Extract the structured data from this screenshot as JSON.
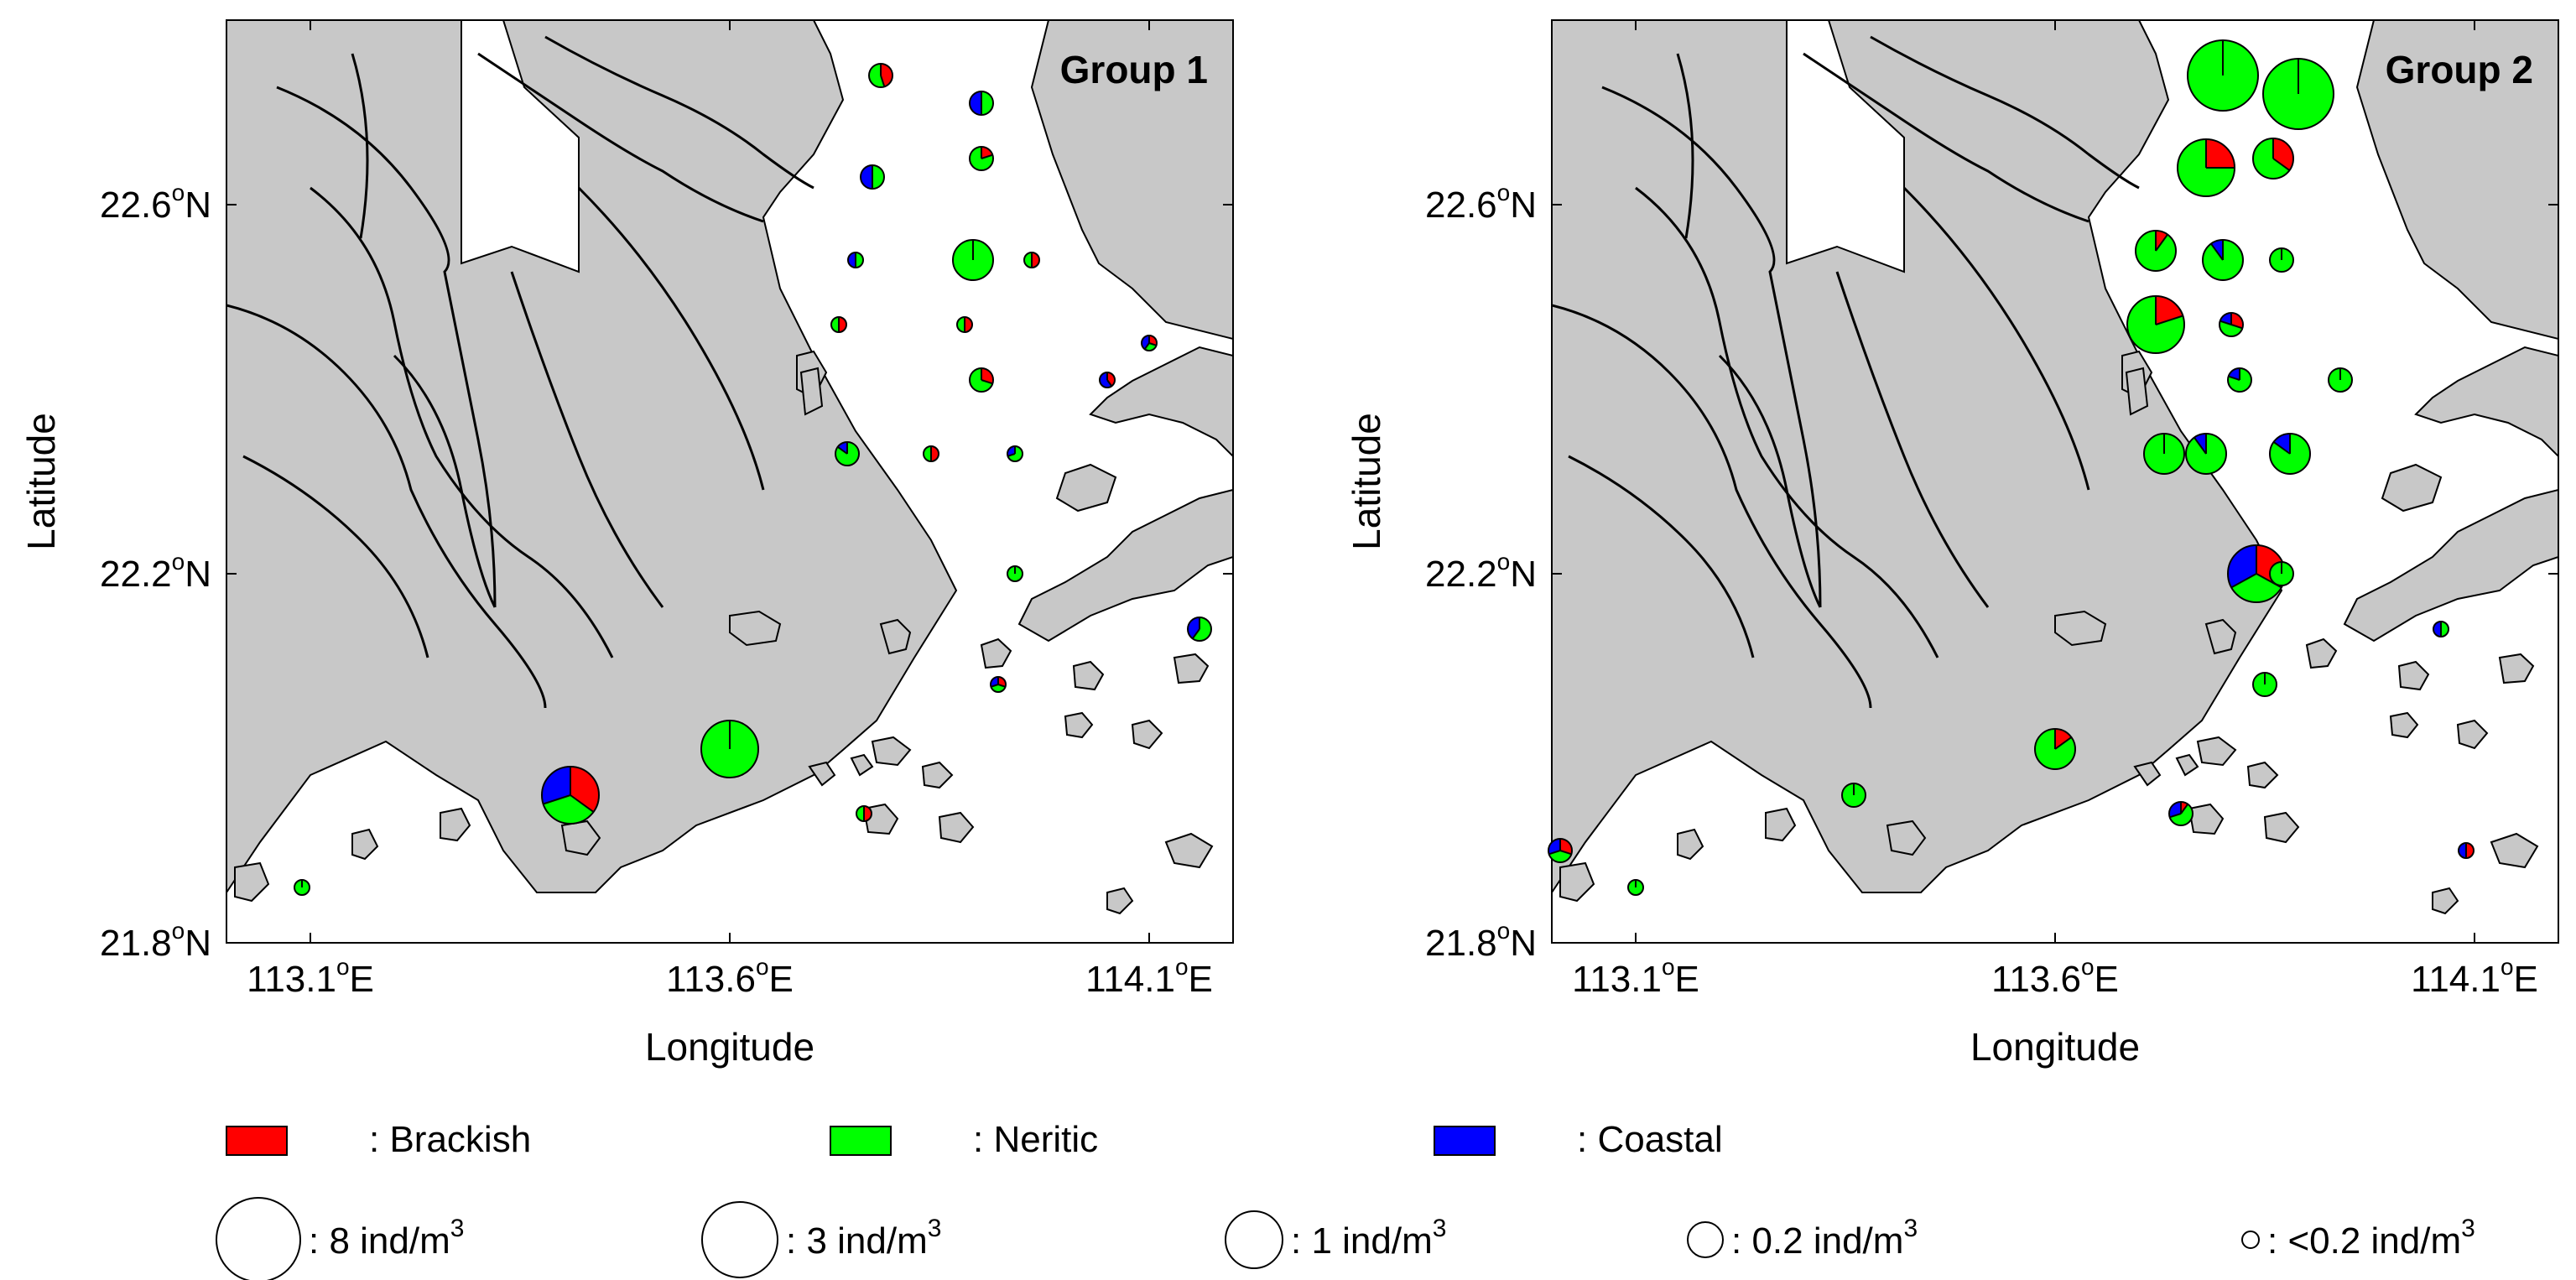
{
  "colors": {
    "land": "#c8c8c8",
    "water": "#ffffff",
    "brackish": "#ff0000",
    "neritic": "#00ff00",
    "coastal": "#0000ff",
    "outline": "#000000"
  },
  "axes": {
    "xlabel": "Longitude",
    "ylabel": "Latitude",
    "lon_range": [
      113.0,
      114.2
    ],
    "lat_range": [
      21.8,
      22.8
    ],
    "x_ticks": [
      {
        "value": 113.1,
        "num": "113.1",
        "deg": "o",
        "hem": "E"
      },
      {
        "value": 113.6,
        "num": "113.6",
        "deg": "o",
        "hem": "E"
      },
      {
        "value": 114.1,
        "num": "114.1",
        "deg": "o",
        "hem": "E"
      }
    ],
    "y_ticks": [
      {
        "value": 22.6,
        "num": "22.6",
        "deg": "o",
        "hem": "N"
      },
      {
        "value": 22.2,
        "num": "22.2",
        "deg": "o",
        "hem": "N"
      },
      {
        "value": 21.8,
        "num": "21.8",
        "deg": "o",
        "hem": "N"
      }
    ]
  },
  "panels": [
    {
      "title": "Group 1",
      "stations": [
        {
          "lon": 113.78,
          "lat": 22.74,
          "size": 1,
          "brackish": 0.45,
          "neritic": 0.55,
          "coastal": 0.0
        },
        {
          "lon": 113.9,
          "lat": 22.71,
          "size": 1,
          "brackish": 0.0,
          "neritic": 0.5,
          "coastal": 0.5
        },
        {
          "lon": 113.9,
          "lat": 22.65,
          "size": 1,
          "brackish": 0.2,
          "neritic": 0.8,
          "coastal": 0.0
        },
        {
          "lon": 113.77,
          "lat": 22.63,
          "size": 1,
          "brackish": 0.0,
          "neritic": 0.5,
          "coastal": 0.5
        },
        {
          "lon": 113.75,
          "lat": 22.54,
          "size": 0,
          "brackish": 0.0,
          "neritic": 0.5,
          "coastal": 0.5
        },
        {
          "lon": 113.89,
          "lat": 22.54,
          "size": 2,
          "brackish": 0.0,
          "neritic": 1.0,
          "coastal": 0.0
        },
        {
          "lon": 113.96,
          "lat": 22.54,
          "size": 0,
          "brackish": 0.5,
          "neritic": 0.5,
          "coastal": 0.0
        },
        {
          "lon": 113.73,
          "lat": 22.47,
          "size": 0,
          "brackish": 0.5,
          "neritic": 0.5,
          "coastal": 0.0
        },
        {
          "lon": 113.88,
          "lat": 22.47,
          "size": 0,
          "brackish": 0.5,
          "neritic": 0.5,
          "coastal": 0.0
        },
        {
          "lon": 114.1,
          "lat": 22.45,
          "size": 0,
          "brackish": 0.3,
          "neritic": 0.3,
          "coastal": 0.4
        },
        {
          "lon": 113.9,
          "lat": 22.41,
          "size": 1,
          "brackish": 0.3,
          "neritic": 0.7,
          "coastal": 0.0
        },
        {
          "lon": 114.05,
          "lat": 22.41,
          "size": 0,
          "brackish": 0.4,
          "neritic": 0.0,
          "coastal": 0.6
        },
        {
          "lon": 113.74,
          "lat": 22.33,
          "size": 1,
          "brackish": 0.0,
          "neritic": 0.85,
          "coastal": 0.15
        },
        {
          "lon": 113.84,
          "lat": 22.33,
          "size": 0,
          "brackish": 0.5,
          "neritic": 0.5,
          "coastal": 0.0
        },
        {
          "lon": 113.94,
          "lat": 22.33,
          "size": 0,
          "brackish": 0.0,
          "neritic": 0.7,
          "coastal": 0.3
        },
        {
          "lon": 113.94,
          "lat": 22.2,
          "size": 0,
          "brackish": 0.0,
          "neritic": 1.0,
          "coastal": 0.0
        },
        {
          "lon": 114.16,
          "lat": 22.14,
          "size": 1,
          "brackish": 0.0,
          "neritic": 0.6,
          "coastal": 0.4
        },
        {
          "lon": 113.92,
          "lat": 22.08,
          "size": 0,
          "brackish": 0.3,
          "neritic": 0.4,
          "coastal": 0.3
        },
        {
          "lon": 113.6,
          "lat": 22.01,
          "size": 3,
          "brackish": 0.0,
          "neritic": 1.0,
          "coastal": 0.0
        },
        {
          "lon": 113.41,
          "lat": 21.96,
          "size": 3,
          "brackish": 0.35,
          "neritic": 0.35,
          "coastal": 0.3
        },
        {
          "lon": 113.76,
          "lat": 21.94,
          "size": 0,
          "brackish": 0.5,
          "neritic": 0.5,
          "coastal": 0.0
        },
        {
          "lon": 113.09,
          "lat": 21.86,
          "size": 0,
          "brackish": 0.0,
          "neritic": 1.0,
          "coastal": 0.0
        }
      ]
    },
    {
      "title": "Group 2",
      "stations": [
        {
          "lon": 113.8,
          "lat": 22.74,
          "size": 4,
          "brackish": 0.0,
          "neritic": 1.0,
          "coastal": 0.0
        },
        {
          "lon": 113.89,
          "lat": 22.72,
          "size": 4,
          "brackish": 0.0,
          "neritic": 1.0,
          "coastal": 0.0
        },
        {
          "lon": 113.78,
          "lat": 22.64,
          "size": 3,
          "brackish": 0.25,
          "neritic": 0.75,
          "coastal": 0.0
        },
        {
          "lon": 113.86,
          "lat": 22.65,
          "size": 2,
          "brackish": 0.35,
          "neritic": 0.65,
          "coastal": 0.0
        },
        {
          "lon": 113.72,
          "lat": 22.55,
          "size": 2,
          "brackish": 0.1,
          "neritic": 0.9,
          "coastal": 0.0
        },
        {
          "lon": 113.8,
          "lat": 22.54,
          "size": 2,
          "brackish": 0.0,
          "neritic": 0.9,
          "coastal": 0.1
        },
        {
          "lon": 113.87,
          "lat": 22.54,
          "size": 1,
          "brackish": 0.0,
          "neritic": 1.0,
          "coastal": 0.0
        },
        {
          "lon": 113.72,
          "lat": 22.47,
          "size": 3,
          "brackish": 0.2,
          "neritic": 0.8,
          "coastal": 0.0
        },
        {
          "lon": 113.81,
          "lat": 22.47,
          "size": 1,
          "brackish": 0.3,
          "neritic": 0.5,
          "coastal": 0.2
        },
        {
          "lon": 113.82,
          "lat": 22.41,
          "size": 1,
          "brackish": 0.0,
          "neritic": 0.8,
          "coastal": 0.2
        },
        {
          "lon": 113.94,
          "lat": 22.41,
          "size": 1,
          "brackish": 0.0,
          "neritic": 1.0,
          "coastal": 0.0
        },
        {
          "lon": 113.73,
          "lat": 22.33,
          "size": 2,
          "brackish": 0.0,
          "neritic": 1.0,
          "coastal": 0.0
        },
        {
          "lon": 113.78,
          "lat": 22.33,
          "size": 2,
          "brackish": 0.0,
          "neritic": 0.9,
          "coastal": 0.1
        },
        {
          "lon": 113.88,
          "lat": 22.33,
          "size": 2,
          "brackish": 0.0,
          "neritic": 0.85,
          "coastal": 0.15
        },
        {
          "lon": 113.84,
          "lat": 22.2,
          "size": 3,
          "brackish": 0.33,
          "neritic": 0.34,
          "coastal": 0.33
        },
        {
          "lon": 113.87,
          "lat": 22.2,
          "size": 1,
          "brackish": 0.0,
          "neritic": 1.0,
          "coastal": 0.0
        },
        {
          "lon": 114.06,
          "lat": 22.14,
          "size": 0,
          "brackish": 0.0,
          "neritic": 0.5,
          "coastal": 0.5
        },
        {
          "lon": 113.85,
          "lat": 22.08,
          "size": 1,
          "brackish": 0.0,
          "neritic": 1.0,
          "coastal": 0.0
        },
        {
          "lon": 113.6,
          "lat": 22.01,
          "size": 2,
          "brackish": 0.15,
          "neritic": 0.85,
          "coastal": 0.0
        },
        {
          "lon": 113.36,
          "lat": 21.96,
          "size": 1,
          "brackish": 0.0,
          "neritic": 1.0,
          "coastal": 0.0
        },
        {
          "lon": 113.75,
          "lat": 21.94,
          "size": 1,
          "brackish": 0.1,
          "neritic": 0.6,
          "coastal": 0.3
        },
        {
          "lon": 113.01,
          "lat": 21.9,
          "size": 1,
          "brackish": 0.3,
          "neritic": 0.4,
          "coastal": 0.3
        },
        {
          "lon": 113.1,
          "lat": 21.86,
          "size": 0,
          "brackish": 0.0,
          "neritic": 1.0,
          "coastal": 0.0
        },
        {
          "lon": 114.09,
          "lat": 21.9,
          "size": 0,
          "brackish": 0.5,
          "neritic": 0.0,
          "coastal": 0.5
        }
      ]
    }
  ],
  "legend": {
    "categories": [
      {
        "key": "brackish",
        "label": ": Brackish"
      },
      {
        "key": "neritic",
        "label": ": Neritic"
      },
      {
        "key": "coastal",
        "label": ": Coastal"
      }
    ],
    "sizes": [
      {
        "prefix": ": 8 ind/m",
        "sup": "3"
      },
      {
        "prefix": ": 3 ind/m",
        "sup": "3"
      },
      {
        "prefix": ": 1 ind/m",
        "sup": "3"
      },
      {
        "prefix": ": 0.2 ind/m",
        "sup": "3"
      },
      {
        "prefix": ": <0.2 ind/m",
        "sup": "3"
      }
    ]
  }
}
